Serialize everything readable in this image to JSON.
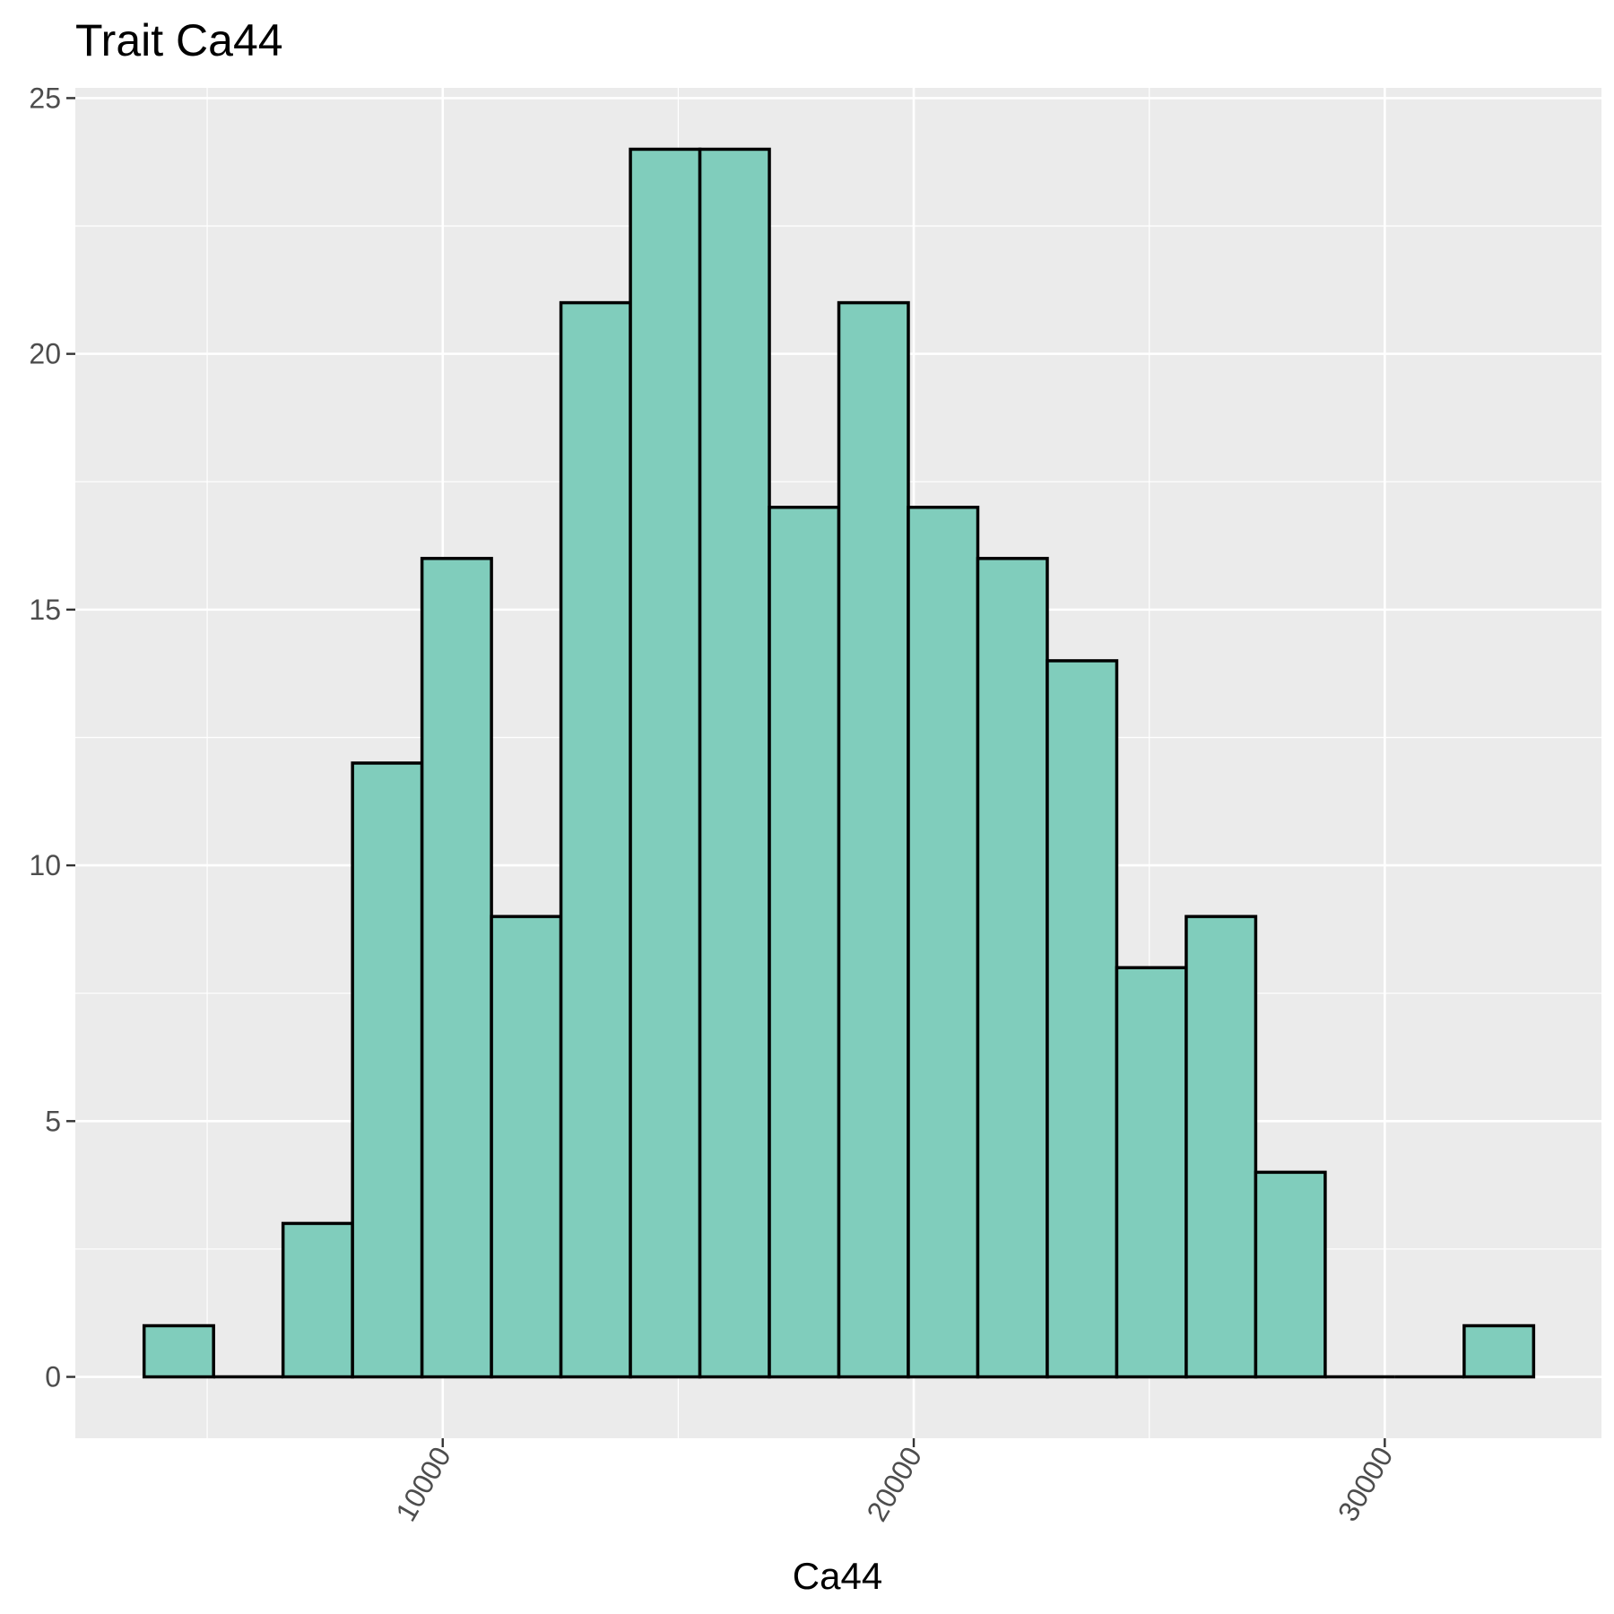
{
  "chart_data": {
    "type": "bar",
    "title": "Trait Ca44",
    "xlabel": "Ca44",
    "ylabel": "",
    "bin_width": 1475,
    "bins": [
      {
        "start": 3660,
        "end": 5135,
        "count": 1
      },
      {
        "start": 5135,
        "end": 6610,
        "count": 0
      },
      {
        "start": 6610,
        "end": 8085,
        "count": 3
      },
      {
        "start": 8085,
        "end": 9560,
        "count": 12
      },
      {
        "start": 9560,
        "end": 11035,
        "count": 16
      },
      {
        "start": 11035,
        "end": 12510,
        "count": 9
      },
      {
        "start": 12510,
        "end": 13985,
        "count": 21
      },
      {
        "start": 13985,
        "end": 15460,
        "count": 24
      },
      {
        "start": 15460,
        "end": 16935,
        "count": 24
      },
      {
        "start": 16935,
        "end": 18410,
        "count": 17
      },
      {
        "start": 18410,
        "end": 19885,
        "count": 21
      },
      {
        "start": 19885,
        "end": 21360,
        "count": 17
      },
      {
        "start": 21360,
        "end": 22835,
        "count": 16
      },
      {
        "start": 22835,
        "end": 24310,
        "count": 14
      },
      {
        "start": 24310,
        "end": 25785,
        "count": 8
      },
      {
        "start": 25785,
        "end": 27260,
        "count": 9
      },
      {
        "start": 27260,
        "end": 28735,
        "count": 4
      },
      {
        "start": 28735,
        "end": 30210,
        "count": 0
      },
      {
        "start": 30210,
        "end": 31685,
        "count": 0
      },
      {
        "start": 31685,
        "end": 33160,
        "count": 1
      }
    ],
    "xlim": [
      2200,
      34600
    ],
    "ylim": [
      -1.2,
      25.2
    ],
    "x_ticks": [
      10000,
      20000,
      30000
    ],
    "x_minor_ticks": [
      5000,
      15000,
      25000
    ],
    "y_ticks": [
      0,
      5,
      10,
      15,
      20,
      25
    ],
    "y_minor_ticks": [
      2.5,
      7.5,
      12.5,
      17.5,
      22.5
    ],
    "x_tick_labels": [
      "10000",
      "20000",
      "30000"
    ],
    "y_tick_labels": [
      "0",
      "5",
      "10",
      "15",
      "20",
      "25"
    ],
    "grid": true,
    "legend": "none",
    "colors": {
      "bar_fill": "#80cdbc",
      "bar_stroke": "#000000",
      "panel_bg": "#ebebeb",
      "grid": "#ffffff"
    }
  }
}
